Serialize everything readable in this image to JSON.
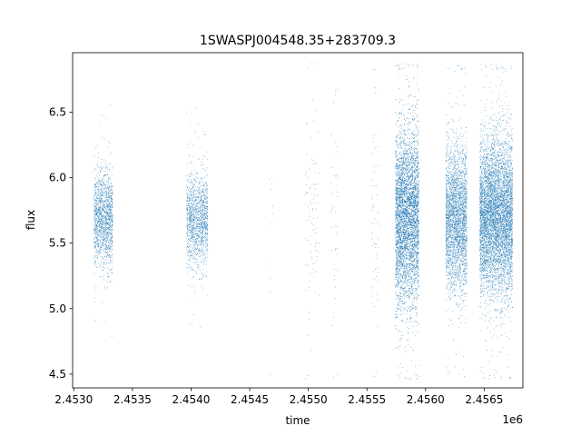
{
  "chart_data": {
    "type": "scatter",
    "title": "1SWASPJ004548.35+283709.3",
    "xlabel": "time",
    "ylabel": "flux",
    "x_offset_label": "1e6",
    "xlim": [
      2.45299,
      2.45683
    ],
    "ylim": [
      4.395,
      6.955
    ],
    "x_ticks": [
      2.453,
      2.4535,
      2.454,
      2.4545,
      2.455,
      2.4555,
      2.456,
      2.4565
    ],
    "x_tick_labels": [
      "2.4530",
      "2.4535",
      "2.4540",
      "2.4545",
      "2.4550",
      "2.4555",
      "2.4560",
      "2.4565"
    ],
    "y_ticks": [
      4.5,
      5.0,
      5.5,
      6.0,
      6.5
    ],
    "y_tick_labels": [
      "4.5",
      "5.0",
      "5.5",
      "6.0",
      "6.5"
    ],
    "grid": false,
    "legend": "none",
    "marker_color": "#1f77b4",
    "clusters": [
      {
        "x_center": 2.45325,
        "x_width": 8e-05,
        "y_center": 5.68,
        "y_spread": 0.18,
        "n": 1500,
        "outliers": 40
      },
      {
        "x_center": 2.45405,
        "x_width": 9e-05,
        "y_center": 5.68,
        "y_spread": 0.17,
        "n": 1400,
        "outliers": 40
      },
      {
        "x_center": 2.45468,
        "x_width": 2e-05,
        "y_center": 5.7,
        "y_spread": 0.6,
        "n": 10,
        "outliers": 0
      },
      {
        "x_center": 2.45503,
        "x_width": 6e-05,
        "y_center": 5.65,
        "y_spread": 0.45,
        "n": 90,
        "outliers": 5
      },
      {
        "x_center": 2.45522,
        "x_width": 3e-05,
        "y_center": 5.7,
        "y_spread": 0.5,
        "n": 40,
        "outliers": 3
      },
      {
        "x_center": 2.45557,
        "x_width": 3e-05,
        "y_center": 5.7,
        "y_spread": 0.45,
        "n": 60,
        "outliers": 5
      },
      {
        "x_center": 2.45584,
        "x_width": 0.0001,
        "y_center": 5.7,
        "y_spread": 0.33,
        "n": 5500,
        "outliers": 120
      },
      {
        "x_center": 2.45626,
        "x_width": 9e-05,
        "y_center": 5.68,
        "y_spread": 0.27,
        "n": 3000,
        "outliers": 80
      },
      {
        "x_center": 2.4566,
        "x_width": 0.00014,
        "y_center": 5.7,
        "y_spread": 0.3,
        "n": 6000,
        "outliers": 150
      }
    ]
  }
}
